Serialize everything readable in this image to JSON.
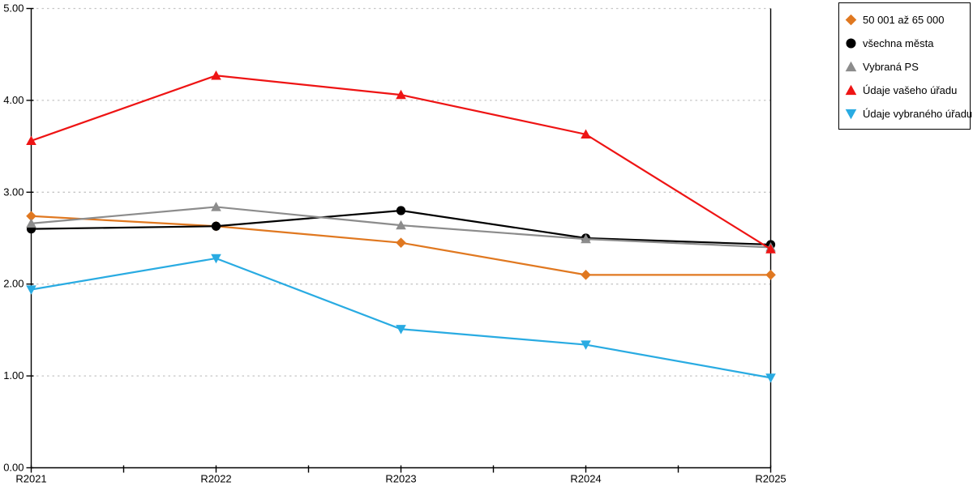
{
  "chart_data": {
    "type": "line",
    "title": "",
    "xlabel": "",
    "ylabel": "",
    "x_labels": [
      "R2021",
      "R2022",
      "R2023",
      "R2024",
      "R2025"
    ],
    "y_tick_labels": [
      "0.00",
      "1.00",
      "2.00",
      "3.00",
      "4.00",
      "5.00"
    ],
    "ylim": [
      0,
      5
    ],
    "grid": "horizontal-dashed",
    "legend_position": "outside-top-right",
    "series": [
      {
        "name": "50 001 až 65 000",
        "color": "#E07820",
        "marker": "diamond",
        "values": [
          2.74,
          2.63,
          2.45,
          2.1,
          2.1
        ]
      },
      {
        "name": "všechna města",
        "color": "#000000",
        "marker": "circle",
        "values": [
          2.6,
          2.63,
          2.8,
          2.5,
          2.43
        ]
      },
      {
        "name": "Vybraná PS",
        "color": "#8C8C8C",
        "marker": "triangle-up",
        "values": [
          2.66,
          2.84,
          2.64,
          2.49,
          2.4
        ]
      },
      {
        "name": "Údaje vašeho úřadu",
        "color": "#EE1414",
        "marker": "triangle-up",
        "values": [
          3.56,
          4.27,
          4.06,
          3.63,
          2.38
        ]
      },
      {
        "name": "Údaje vybraného úřadu",
        "color": "#29ABE2",
        "marker": "triangle-down",
        "values": [
          1.94,
          2.28,
          1.51,
          1.34,
          0.98
        ]
      }
    ]
  },
  "style": {
    "grid_color": "#C6C6C6",
    "axis_color": "#000000",
    "background": "#FFFFFF"
  }
}
